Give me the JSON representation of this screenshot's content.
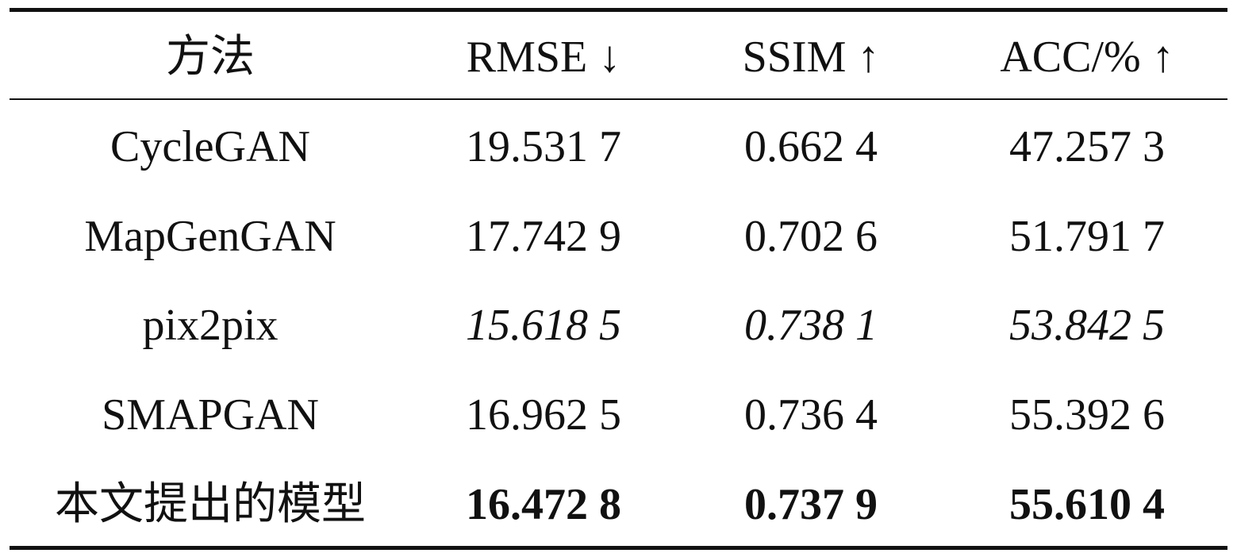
{
  "table": {
    "header": [
      "方法",
      "RMSE ↓",
      "SSIM ↑",
      "ACC/% ↑"
    ],
    "rows": [
      [
        "CycleGAN",
        "19.531 7",
        "0.662 4",
        "47.257 3"
      ],
      [
        "MapGenGAN",
        "17.742 9",
        "0.702 6",
        "51.791 7"
      ],
      [
        "pix2pix",
        "15.618 5",
        "0.738 1",
        "53.842 5"
      ],
      [
        "SMAPGAN",
        "16.962 5",
        "0.736 4",
        "55.392 6"
      ],
      [
        "本文提出的模型",
        "16.472 8",
        "0.737 9",
        "55.610 4"
      ]
    ]
  }
}
